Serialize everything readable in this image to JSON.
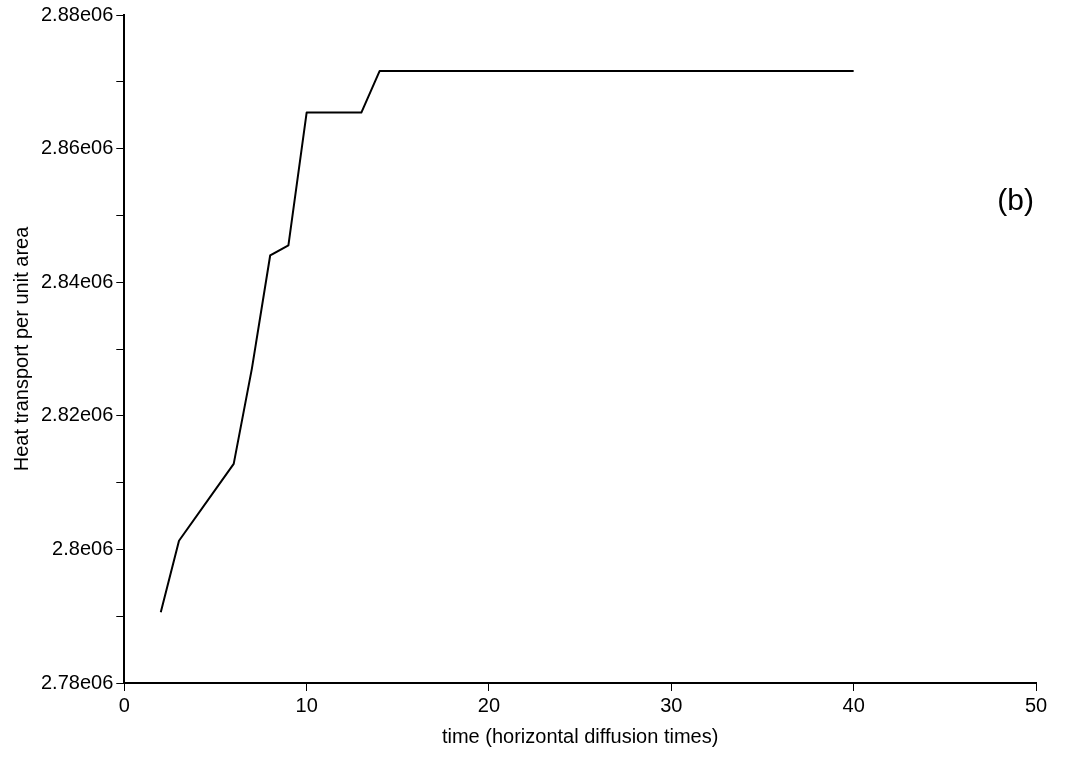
{
  "chart_data": {
    "type": "line",
    "xlabel": "time (horizontal diffusion times)",
    "ylabel": "Heat transport per unit area",
    "annotations": [
      "(b)"
    ],
    "series": [
      {
        "color": "#000000",
        "x": [
          2,
          3,
          6,
          7,
          8,
          9,
          10,
          13,
          14,
          40
        ],
        "values": [
          2790600,
          2801300,
          2812800,
          2827100,
          2844000,
          2845500,
          2865400,
          2865400,
          2871600,
          2871600
        ]
      }
    ],
    "xlim": [
      0,
      50
    ],
    "xticks": [
      0,
      10,
      20,
      30,
      40,
      50
    ],
    "ylim": [
      2780000,
      2880000
    ],
    "yticks": [
      {
        "value": 2780000,
        "label": "2.78e06"
      },
      {
        "value": 2790000,
        "label": null
      },
      {
        "value": 2800000,
        "label": "2.8e06"
      },
      {
        "value": 2810000,
        "label": null
      },
      {
        "value": 2820000,
        "label": "2.82e06"
      },
      {
        "value": 2830000,
        "label": null
      },
      {
        "value": 2840000,
        "label": "2.84e06"
      },
      {
        "value": 2850000,
        "label": null
      },
      {
        "value": 2860000,
        "label": "2.86e06"
      },
      {
        "value": 2870000,
        "label": null
      },
      {
        "value": 2880000,
        "label": "2.88e06"
      }
    ],
    "grid": false,
    "legend": false,
    "marker": "none",
    "line_style": "solid"
  }
}
